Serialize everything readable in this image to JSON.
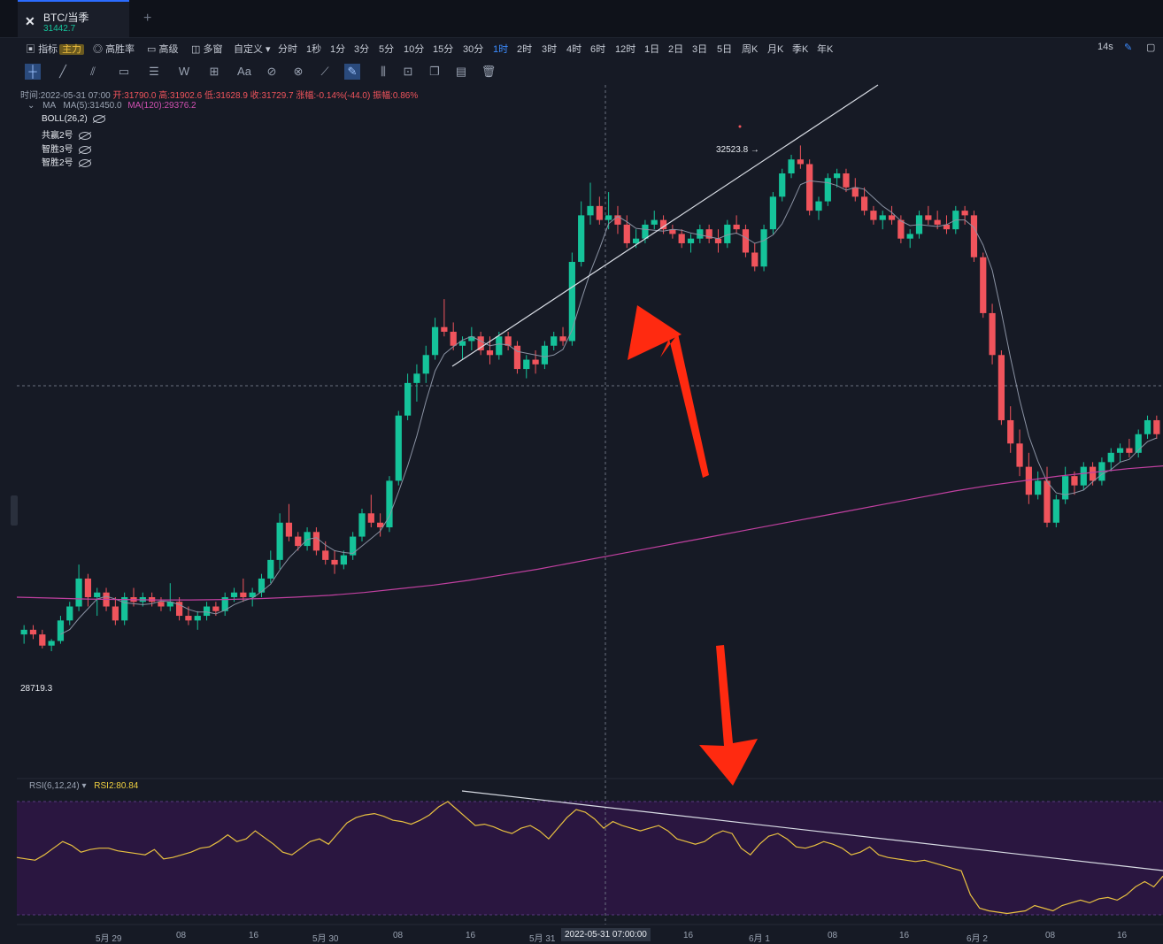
{
  "tab": {
    "symbol": "BTC/当季",
    "price": "31442.7",
    "add": "+",
    "logo": "✕"
  },
  "toolbar": {
    "indicator_label": "指标",
    "main_badge": "主力",
    "winrate": "高胜率",
    "advanced": "高级",
    "multiwin": "多窗",
    "custom": "自定义",
    "intervals": [
      "分时",
      "1秒",
      "1分",
      "3分",
      "5分",
      "10分",
      "15分",
      "30分",
      "1时",
      "2时",
      "3时",
      "4时",
      "6时",
      "12时",
      "1日",
      "2日",
      "3日",
      "5日",
      "周K",
      "月K",
      "季K",
      "年K"
    ],
    "active_interval": "1时",
    "refresh": "14s"
  },
  "info": {
    "time": "时间:2022-05-31 07:00",
    "open": "开:31790.0",
    "high": "高:31902.6",
    "low": "低:31628.9",
    "close": "收:31729.7",
    "change": "涨幅:-0.14%(-44.0)",
    "amp": "振幅:0.86%"
  },
  "ma": {
    "label": "MA",
    "ma5": "MA(5):31450.0",
    "ma120": "MA(120):29376.2"
  },
  "indicators": [
    "BOLL(26,2)",
    "共赢2号",
    "智胜3号",
    "智胜2号"
  ],
  "rsi": {
    "label": "RSI(6,12,24)",
    "value": "RSI2:80.84"
  },
  "colors": {
    "up": "#15c39a",
    "down": "#f0545c",
    "ma5": "#8a92a3",
    "ma120": "#c040a0",
    "rsi": "#e8c040",
    "arrow": "#ff2a10"
  },
  "chart_data": {
    "type": "candlestick",
    "y_range": [
      27400,
      34800
    ],
    "high_label": "32523.8",
    "low_label": "28719.3",
    "time_labels": [
      "5月 29",
      "08",
      "16",
      "5月 30",
      "08",
      "16",
      "5月 31",
      "2022-05-31 07:00:00",
      "16",
      "6月 1",
      "08",
      "16",
      "6月 2",
      "08",
      "16"
    ],
    "candles": [
      [
        28900,
        29000,
        28800,
        28950
      ],
      [
        28950,
        29000,
        28850,
        28900
      ],
      [
        28900,
        28950,
        28750,
        28780
      ],
      [
        28780,
        28850,
        28720,
        28830
      ],
      [
        28830,
        29100,
        28800,
        29050
      ],
      [
        29050,
        29250,
        29000,
        29200
      ],
      [
        29200,
        29650,
        29150,
        29500
      ],
      [
        29500,
        29550,
        29200,
        29300
      ],
      [
        29300,
        29400,
        29100,
        29350
      ],
      [
        29350,
        29400,
        29150,
        29200
      ],
      [
        29200,
        29300,
        29000,
        29050
      ],
      [
        29050,
        29350,
        29000,
        29300
      ],
      [
        29300,
        29400,
        29200,
        29250
      ],
      [
        29250,
        29350,
        29200,
        29300
      ],
      [
        29300,
        29350,
        29200,
        29250
      ],
      [
        29250,
        29300,
        29150,
        29200
      ],
      [
        29200,
        29450,
        29150,
        29250
      ],
      [
        29250,
        29300,
        29050,
        29100
      ],
      [
        29100,
        29200,
        29000,
        29050
      ],
      [
        29050,
        29150,
        28950,
        29100
      ],
      [
        29100,
        29250,
        29050,
        29200
      ],
      [
        29200,
        29250,
        29100,
        29150
      ],
      [
        29150,
        29350,
        29100,
        29300
      ],
      [
        29300,
        29400,
        29250,
        29350
      ],
      [
        29350,
        29500,
        29250,
        29300
      ],
      [
        29300,
        29400,
        29200,
        29350
      ],
      [
        29350,
        29550,
        29300,
        29500
      ],
      [
        29500,
        29800,
        29450,
        29700
      ],
      [
        29700,
        30200,
        29600,
        30100
      ],
      [
        30100,
        30300,
        29900,
        29950
      ],
      [
        29950,
        30000,
        29800,
        29850
      ],
      [
        29850,
        30050,
        29800,
        30000
      ],
      [
        30000,
        30050,
        29750,
        29800
      ],
      [
        29800,
        29900,
        29650,
        29700
      ],
      [
        29700,
        29800,
        29550,
        29650
      ],
      [
        29650,
        29800,
        29600,
        29750
      ],
      [
        29750,
        30000,
        29700,
        29950
      ],
      [
        29950,
        30250,
        29900,
        30200
      ],
      [
        30200,
        30400,
        30050,
        30100
      ],
      [
        30100,
        30200,
        29950,
        30050
      ],
      [
        30050,
        30600,
        30000,
        30550
      ],
      [
        30550,
        31300,
        30500,
        31250
      ],
      [
        31250,
        31700,
        31200,
        31600
      ],
      [
        31600,
        31800,
        31400,
        31700
      ],
      [
        31700,
        32000,
        31600,
        31900
      ],
      [
        31900,
        32300,
        31850,
        32200
      ],
      [
        32200,
        32500,
        32100,
        32150
      ],
      [
        32150,
        32250,
        31950,
        32000
      ],
      [
        32000,
        32100,
        31850,
        32050
      ],
      [
        32050,
        32200,
        31950,
        32100
      ],
      [
        32100,
        32150,
        31900,
        31950
      ],
      [
        31950,
        32100,
        31800,
        31900
      ],
      [
        31900,
        32150,
        31850,
        32100
      ],
      [
        32100,
        32150,
        31950,
        32000
      ],
      [
        32000,
        32050,
        31700,
        31750
      ],
      [
        31750,
        31900,
        31650,
        31850
      ],
      [
        31850,
        31950,
        31700,
        31800
      ],
      [
        31800,
        32050,
        31750,
        32000
      ],
      [
        32000,
        32150,
        31950,
        32100
      ],
      [
        32100,
        32200,
        32000,
        32050
      ],
      [
        32050,
        33000,
        32000,
        32900
      ],
      [
        32900,
        33550,
        32850,
        33400
      ],
      [
        33400,
        33750,
        33300,
        33500
      ],
      [
        33500,
        33600,
        33300,
        33350
      ],
      [
        33350,
        33650,
        33250,
        33400
      ],
      [
        33400,
        33500,
        33200,
        33300
      ],
      [
        33300,
        33400,
        33050,
        33100
      ],
      [
        33100,
        33250,
        33050,
        33150
      ],
      [
        33150,
        33350,
        33100,
        33300
      ],
      [
        33300,
        33450,
        33250,
        33350
      ],
      [
        33350,
        33400,
        33200,
        33250
      ],
      [
        33250,
        33300,
        33150,
        33200
      ],
      [
        33200,
        33250,
        33050,
        33100
      ],
      [
        33100,
        33200,
        33000,
        33150
      ],
      [
        33150,
        33300,
        33100,
        33250
      ],
      [
        33250,
        33300,
        33100,
        33150
      ],
      [
        33150,
        33250,
        33000,
        33100
      ],
      [
        33100,
        33350,
        33050,
        33300
      ],
      [
        33300,
        33400,
        33200,
        33250
      ],
      [
        33250,
        33300,
        32950,
        33000
      ],
      [
        33000,
        33100,
        32800,
        32850
      ],
      [
        32850,
        33300,
        32800,
        33250
      ],
      [
        33250,
        33650,
        33200,
        33600
      ],
      [
        33600,
        33900,
        33550,
        33850
      ],
      [
        33850,
        34050,
        33800,
        34000
      ],
      [
        34000,
        34150,
        33900,
        33950
      ],
      [
        33950,
        34000,
        33400,
        33450
      ],
      [
        33450,
        33600,
        33350,
        33550
      ],
      [
        33550,
        33850,
        33500,
        33800
      ],
      [
        33800,
        33900,
        33700,
        33850
      ],
      [
        33850,
        33900,
        33650,
        33700
      ],
      [
        33700,
        33800,
        33550,
        33600
      ],
      [
        33600,
        33700,
        33400,
        33450
      ],
      [
        33450,
        33500,
        33300,
        33350
      ],
      [
        33350,
        33450,
        33250,
        33400
      ],
      [
        33400,
        33500,
        33300,
        33350
      ],
      [
        33350,
        33400,
        33100,
        33150
      ],
      [
        33150,
        33250,
        33050,
        33200
      ],
      [
        33200,
        33450,
        33150,
        33400
      ],
      [
        33400,
        33500,
        33300,
        33350
      ],
      [
        33350,
        33450,
        33250,
        33300
      ],
      [
        33300,
        33400,
        33200,
        33250
      ],
      [
        33250,
        33500,
        33200,
        33450
      ],
      [
        33450,
        33500,
        33300,
        33400
      ],
      [
        33400,
        33450,
        32900,
        32950
      ],
      [
        32950,
        33000,
        32300,
        32350
      ],
      [
        32350,
        32450,
        31800,
        31900
      ],
      [
        31900,
        31950,
        31150,
        31200
      ],
      [
        31200,
        31350,
        30850,
        30950
      ],
      [
        30950,
        31100,
        30600,
        30700
      ],
      [
        30700,
        30850,
        30300,
        30400
      ],
      [
        30400,
        30650,
        30350,
        30550
      ],
      [
        30550,
        30700,
        30050,
        30100
      ],
      [
        30100,
        30400,
        30050,
        30350
      ],
      [
        30350,
        30700,
        30300,
        30600
      ],
      [
        30600,
        30650,
        30400,
        30500
      ],
      [
        30500,
        30750,
        30450,
        30700
      ],
      [
        30700,
        30750,
        30500,
        30550
      ],
      [
        30550,
        30800,
        30500,
        30750
      ],
      [
        30750,
        30900,
        30650,
        30850
      ],
      [
        30850,
        30950,
        30750,
        30900
      ],
      [
        30900,
        31000,
        30800,
        30850
      ],
      [
        30850,
        31100,
        30800,
        31050
      ],
      [
        31050,
        31250,
        31000,
        31200
      ],
      [
        31200,
        31250,
        31000,
        31050
      ]
    ],
    "ma120": [
      29300,
      29290,
      29280,
      29275,
      29270,
      29270,
      29275,
      29285,
      29300,
      29320,
      29350,
      29390,
      29430,
      29480,
      29540,
      29600,
      29670,
      29740,
      29810,
      29880,
      29950,
      30020,
      30090,
      30160,
      30230,
      30300,
      30370,
      30440,
      30500,
      30550,
      30600,
      30640,
      30680,
      30710
    ],
    "rsi": [
      48,
      47,
      46,
      50,
      55,
      60,
      57,
      52,
      54,
      55,
      55,
      53,
      52,
      51,
      50,
      54,
      47,
      48,
      50,
      52,
      55,
      56,
      60,
      65,
      60,
      62,
      68,
      63,
      58,
      52,
      50,
      55,
      60,
      62,
      58,
      66,
      74,
      78,
      80,
      81,
      79,
      76,
      75,
      73,
      76,
      80,
      86,
      90,
      84,
      78,
      72,
      73,
      71,
      68,
      66,
      70,
      72,
      68,
      62,
      70,
      78,
      84,
      82,
      77,
      70,
      75,
      72,
      70,
      68,
      70,
      72,
      68,
      62,
      60,
      58,
      60,
      65,
      68,
      66,
      55,
      50,
      58,
      64,
      66,
      62,
      56,
      55,
      57,
      60,
      58,
      55,
      50,
      52,
      56,
      50,
      48,
      47,
      46,
      45,
      46,
      44,
      42,
      40,
      38,
      20,
      10,
      8,
      7,
      6,
      7,
      8,
      12,
      10,
      8,
      12,
      14,
      16,
      14,
      17,
      18,
      16,
      20,
      26,
      30,
      26,
      34
    ]
  }
}
